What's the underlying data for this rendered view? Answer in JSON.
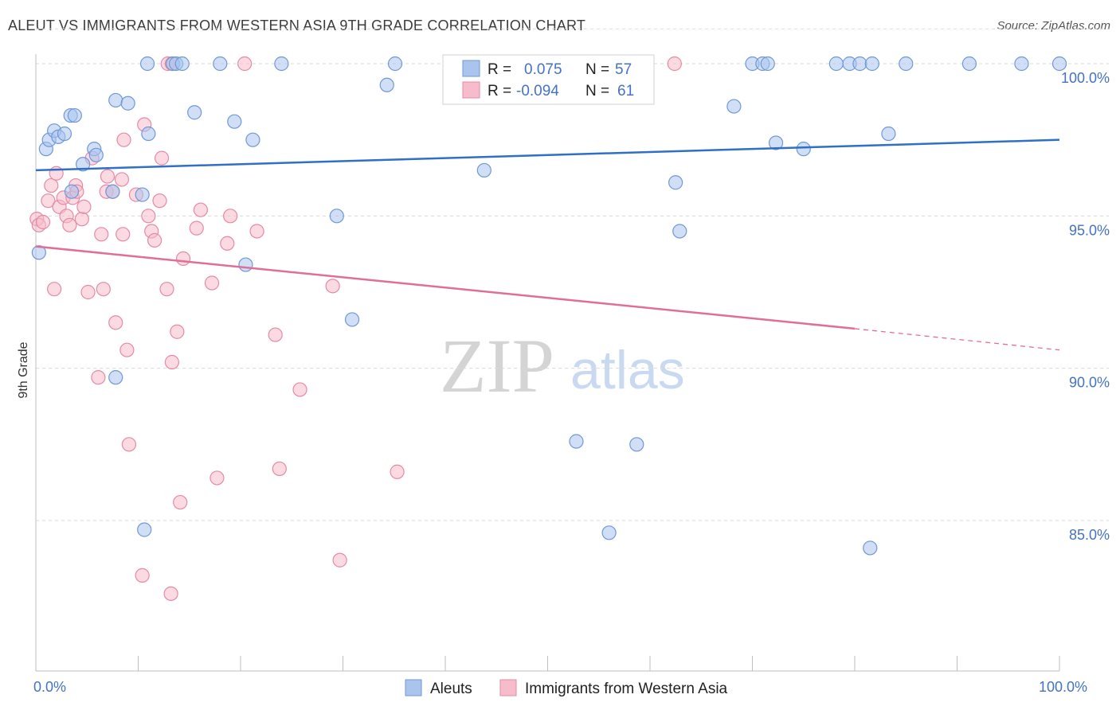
{
  "title": "ALEUT VS IMMIGRANTS FROM WESTERN ASIA 9TH GRADE CORRELATION CHART",
  "source": "Source: ZipAtlas.com",
  "watermark": {
    "zip": "ZIP",
    "atlas": "atlas"
  },
  "legend": {
    "rows": [
      {
        "r_label": "R =",
        "r_value": "0.075",
        "n_label": "N =",
        "n_value": "57"
      },
      {
        "r_label": "R =",
        "r_value": "-0.094",
        "n_label": "N =",
        "n_value": "61"
      }
    ]
  },
  "colors": {
    "aleut_fill": "#aac4ee",
    "aleut_stroke": "#6f98d8",
    "aleut_line": "#2f6fc8",
    "imm_fill": "#f7bccb",
    "imm_stroke": "#e58aa4",
    "imm_line": "#e06f98",
    "grid": "#d9d9d9",
    "axis_text": "#4472c4"
  },
  "chart_data": {
    "type": "scatter",
    "ylabel": "9th Grade",
    "xlim": [
      0,
      100
    ],
    "ylim": [
      80.3,
      101.3
    ],
    "y_ticks": [
      85,
      90,
      95,
      100
    ],
    "y_tick_labels": [
      "85.0%",
      "90.0%",
      "95.0%",
      "100.0%"
    ],
    "x_tick_labels": [
      "0.0%",
      "100.0%"
    ],
    "grid": true,
    "legend_position": "top-center",
    "series": [
      {
        "name": "Aleuts",
        "trend": [
          [
            0,
            96.5
          ],
          [
            100,
            97.5
          ]
        ],
        "points": [
          [
            0.3,
            93.8
          ],
          [
            1.0,
            97.2
          ],
          [
            1.3,
            97.5
          ],
          [
            1.8,
            97.8
          ],
          [
            2.2,
            97.6
          ],
          [
            2.8,
            97.7
          ],
          [
            3.4,
            98.3
          ],
          [
            3.8,
            98.3
          ],
          [
            3.5,
            95.8
          ],
          [
            4.6,
            96.7
          ],
          [
            5.7,
            97.2
          ],
          [
            5.9,
            97.0
          ],
          [
            7.5,
            95.8
          ],
          [
            7.8,
            98.8
          ],
          [
            9.0,
            98.7
          ],
          [
            7.8,
            89.7
          ],
          [
            10.4,
            95.7
          ],
          [
            10.9,
            100.0
          ],
          [
            11.0,
            97.7
          ],
          [
            13.4,
            100.0
          ],
          [
            13.7,
            100.0
          ],
          [
            14.3,
            100.0
          ],
          [
            15.5,
            98.4
          ],
          [
            10.6,
            84.7
          ],
          [
            18.0,
            100.0
          ],
          [
            19.4,
            98.1
          ],
          [
            20.5,
            93.4
          ],
          [
            21.2,
            97.5
          ],
          [
            24.0,
            100.0
          ],
          [
            29.4,
            95.0
          ],
          [
            30.9,
            91.6
          ],
          [
            34.3,
            99.3
          ],
          [
            35.1,
            100.0
          ],
          [
            43.8,
            96.5
          ],
          [
            47.2,
            100.0
          ],
          [
            52.1,
            100.0
          ],
          [
            52.8,
            87.6
          ],
          [
            56.0,
            84.6
          ],
          [
            58.7,
            87.5
          ],
          [
            62.5,
            96.1
          ],
          [
            62.9,
            94.5
          ],
          [
            68.2,
            98.6
          ],
          [
            70.0,
            100.0
          ],
          [
            71.0,
            100.0
          ],
          [
            71.5,
            100.0
          ],
          [
            72.3,
            97.4
          ],
          [
            75.0,
            97.2
          ],
          [
            78.2,
            100.0
          ],
          [
            79.5,
            100.0
          ],
          [
            80.5,
            100.0
          ],
          [
            81.5,
            84.1
          ],
          [
            81.7,
            100.0
          ],
          [
            83.3,
            97.7
          ],
          [
            85.0,
            100.0
          ],
          [
            91.2,
            100.0
          ],
          [
            96.3,
            100.0
          ],
          [
            100.0,
            100.0
          ]
        ]
      },
      {
        "name": "Immigrants from Western Asia",
        "trend": [
          [
            0,
            94.0
          ],
          [
            80,
            91.3
          ]
        ],
        "trend_dashed": [
          [
            80,
            91.3
          ],
          [
            100,
            90.6
          ]
        ],
        "points": [
          [
            0.1,
            94.9
          ],
          [
            0.3,
            94.7
          ],
          [
            0.7,
            94.8
          ],
          [
            1.2,
            95.5
          ],
          [
            1.5,
            96.0
          ],
          [
            1.8,
            92.6
          ],
          [
            2.0,
            96.4
          ],
          [
            2.3,
            95.3
          ],
          [
            2.7,
            95.6
          ],
          [
            3.0,
            95.0
          ],
          [
            3.3,
            94.7
          ],
          [
            3.6,
            95.6
          ],
          [
            3.9,
            96.0
          ],
          [
            4.0,
            95.8
          ],
          [
            4.5,
            94.9
          ],
          [
            4.7,
            95.3
          ],
          [
            5.1,
            92.5
          ],
          [
            5.5,
            96.9
          ],
          [
            6.1,
            89.7
          ],
          [
            6.4,
            94.4
          ],
          [
            6.6,
            92.6
          ],
          [
            6.9,
            95.8
          ],
          [
            7.0,
            96.3
          ],
          [
            7.5,
            95.8
          ],
          [
            7.8,
            91.5
          ],
          [
            8.4,
            96.2
          ],
          [
            8.5,
            94.4
          ],
          [
            8.6,
            97.5
          ],
          [
            8.9,
            90.6
          ],
          [
            9.1,
            87.5
          ],
          [
            9.8,
            95.7
          ],
          [
            10.4,
            83.2
          ],
          [
            10.6,
            98.0
          ],
          [
            11.0,
            95.0
          ],
          [
            11.3,
            94.5
          ],
          [
            11.6,
            94.2
          ],
          [
            12.1,
            95.5
          ],
          [
            12.3,
            96.9
          ],
          [
            12.8,
            92.6
          ],
          [
            12.9,
            100.0
          ],
          [
            13.3,
            100.0
          ],
          [
            13.3,
            90.2
          ],
          [
            13.2,
            82.6
          ],
          [
            13.8,
            91.2
          ],
          [
            14.1,
            85.6
          ],
          [
            14.4,
            93.6
          ],
          [
            15.7,
            94.6
          ],
          [
            16.1,
            95.2
          ],
          [
            17.2,
            92.8
          ],
          [
            17.7,
            86.4
          ],
          [
            18.7,
            94.1
          ],
          [
            19.0,
            95.0
          ],
          [
            20.4,
            100.0
          ],
          [
            21.6,
            94.5
          ],
          [
            23.4,
            91.1
          ],
          [
            23.8,
            86.7
          ],
          [
            25.8,
            89.3
          ],
          [
            29.0,
            92.7
          ],
          [
            29.7,
            83.7
          ],
          [
            35.3,
            86.6
          ],
          [
            62.4,
            100.0
          ]
        ]
      }
    ]
  }
}
